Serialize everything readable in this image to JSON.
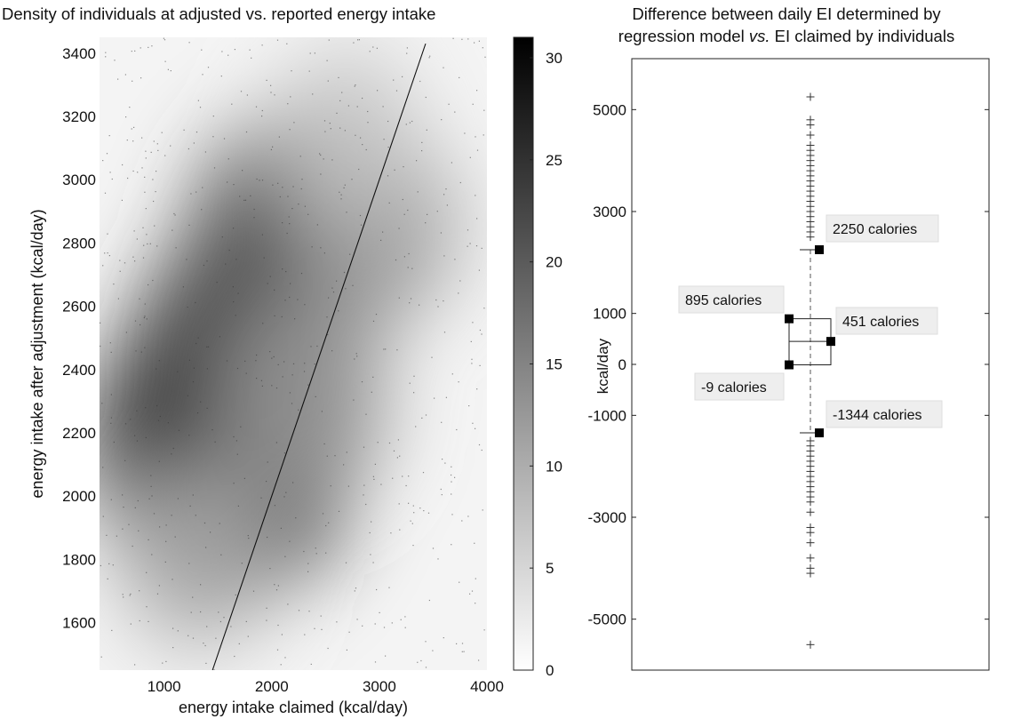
{
  "chart_data": [
    {
      "type": "heatmap",
      "title": "Density of individuals at adjusted vs. reported energy intake",
      "xlabel": "energy intake claimed (kcal/day)",
      "ylabel": "energy intake after adjustment (kcal/day)",
      "xlim": [
        400,
        4000
      ],
      "ylim": [
        1450,
        3450
      ],
      "xticks": [
        1000,
        2000,
        3000,
        4000
      ],
      "yticks": [
        1600,
        1800,
        2000,
        2200,
        2400,
        2600,
        2800,
        3000,
        3200,
        3400
      ],
      "colorbar": {
        "min": 0,
        "max": 31,
        "ticks": [
          0,
          5,
          10,
          15,
          20,
          25,
          30
        ]
      },
      "colormap": [
        "#ffffff",
        "#000000"
      ],
      "density_peaks": [
        {
          "x": 1550,
          "y": 2150,
          "value": 30
        },
        {
          "x": 1800,
          "y": 2450,
          "value": 23
        },
        {
          "x": 2250,
          "y": 2800,
          "value": 21
        },
        {
          "x": 1300,
          "y": 1800,
          "value": 9
        },
        {
          "x": 3000,
          "y": 2850,
          "value": 11
        },
        {
          "x": 2700,
          "y": 3150,
          "value": 7
        },
        {
          "x": 2300,
          "y": 2300,
          "value": 12
        }
      ],
      "identity_line": {
        "x": [
          1450,
          3430
        ],
        "y": [
          1450,
          3430
        ]
      }
    },
    {
      "type": "scatter",
      "title": "Difference between daily EI determined by regression model vs. EI claimed by individuals",
      "ylabel": "kcal/day",
      "ylim": [
        -6000,
        6000
      ],
      "yticks": [
        5000,
        3000,
        1000,
        0,
        -1000,
        -3000,
        -5000
      ],
      "outliers": [
        5250,
        4800,
        4700,
        4500,
        4300,
        4200,
        4100,
        4000,
        3900,
        3800,
        3700,
        3600,
        3500,
        3400,
        3300,
        3200,
        3100,
        3000,
        2900,
        2800,
        2700,
        2600,
        2500,
        -1500,
        -1600,
        -1700,
        -1800,
        -1900,
        -2000,
        -2100,
        -2200,
        -2300,
        -2400,
        -2500,
        -2600,
        -2700,
        -2900,
        -3200,
        -3300,
        -3500,
        -3800,
        -4000,
        -4100,
        -5500
      ],
      "whisker_caps": [
        2250,
        -1344
      ],
      "markers": [
        {
          "value": 2250,
          "label": "2250 calories"
        },
        {
          "value": 895,
          "label": "895 calories"
        },
        {
          "value": 451,
          "label": "451 calories"
        },
        {
          "value": -9,
          "label": "-9 calories"
        },
        {
          "value": -1344,
          "label": "-1344 calories"
        }
      ]
    }
  ]
}
